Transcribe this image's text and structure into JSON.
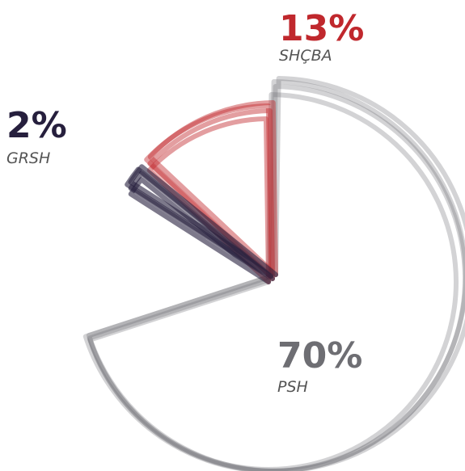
{
  "chart_data": {
    "type": "pie",
    "categories": [
      "PSH",
      "SHÇBA",
      "GRSH"
    ],
    "values": [
      70,
      13,
      2
    ],
    "value_labels": [
      "70%",
      "13%",
      "2%"
    ],
    "colors": [
      "#6e6e73",
      "#c0282d",
      "#261f3d"
    ]
  }
}
